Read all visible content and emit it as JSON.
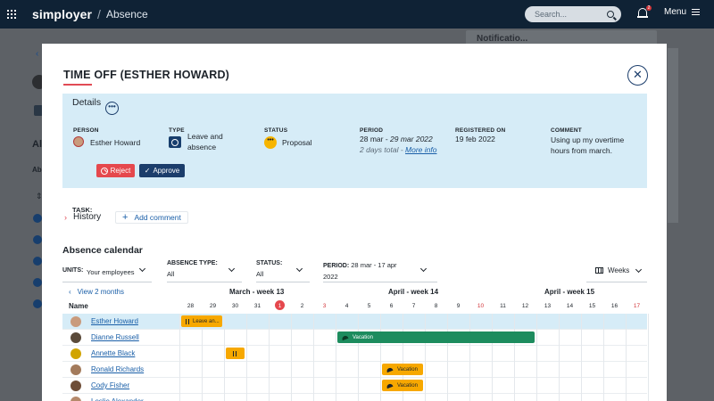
{
  "topbar": {
    "logo": "simployer",
    "separator": "/",
    "breadcrumb": "Absence",
    "search_placeholder": "Search...",
    "notification_count": "2",
    "menu_label": "Menu"
  },
  "background": {
    "notifications_title": "Notificatio..."
  },
  "modal": {
    "title": "TIME OFF (ESTHER HOWARD)",
    "close_label": "✕",
    "details": {
      "title": "Details",
      "more_label": "•••",
      "person_header": "PERSON",
      "person_value": "Esther Howard",
      "type_header": "TYPE",
      "type_value": "Leave and absence",
      "status_header": "STATUS",
      "status_value": "Proposal",
      "status_icon_label": "•••",
      "period_header": "PERIOD",
      "period_start": "28 mar",
      "period_sep": " - ",
      "period_end": "29 mar 2022",
      "period_total": "2 days total",
      "period_total_sep": " - ",
      "more_info": "More info",
      "registered_header": "REGISTERED ON",
      "registered_value": "19 feb 2022",
      "comment_header": "COMMENT",
      "comment_value": "Using up my overtime hours from march.",
      "task_label": "TASK:",
      "reject_label": "Reject",
      "approve_label": "Approve"
    },
    "history_label": "History",
    "add_comment_label": "Add comment",
    "calendar": {
      "title": "Absence calendar",
      "units_label": "UNITS:",
      "units_value": "Your employees",
      "absence_type_label": "ABSENCE TYPE:",
      "absence_type_value": "All",
      "status_label": "STATUS:",
      "status_value": "All",
      "period_label": "PERIOD:",
      "period_value": "28 mar - 17 apr 2022",
      "view_label": "Weeks",
      "view_two_months": "View 2 months",
      "weeks": [
        "March - week 13",
        "April - week 14",
        "April - week 15"
      ],
      "name_header": "Name",
      "days": [
        {
          "d": "28",
          "t": "n"
        },
        {
          "d": "29",
          "t": "n"
        },
        {
          "d": "30",
          "t": "n"
        },
        {
          "d": "31",
          "t": "n"
        },
        {
          "d": "1",
          "t": "today"
        },
        {
          "d": "2",
          "t": "n"
        },
        {
          "d": "3",
          "t": "red"
        },
        {
          "d": "4",
          "t": "n"
        },
        {
          "d": "5",
          "t": "n"
        },
        {
          "d": "6",
          "t": "n"
        },
        {
          "d": "7",
          "t": "n"
        },
        {
          "d": "8",
          "t": "n"
        },
        {
          "d": "9",
          "t": "n"
        },
        {
          "d": "10",
          "t": "red"
        },
        {
          "d": "11",
          "t": "n"
        },
        {
          "d": "12",
          "t": "n"
        },
        {
          "d": "13",
          "t": "n"
        },
        {
          "d": "14",
          "t": "n"
        },
        {
          "d": "15",
          "t": "n"
        },
        {
          "d": "16",
          "t": "n"
        },
        {
          "d": "17",
          "t": "red"
        }
      ],
      "rows": [
        {
          "name": "Esther Howard",
          "avatar_color": "#c99b7d",
          "highlight": true,
          "bars": [
            {
              "start": 0,
              "days": 2,
              "label": "Leave an...",
              "color": "orange",
              "icon": "pause"
            }
          ]
        },
        {
          "name": "Dianne Russell",
          "avatar_color": "#5a4a3a",
          "highlight": false,
          "bars": [
            {
              "start": 7,
              "days": 9,
              "label": "Vacation",
              "color": "green",
              "icon": "umbrella"
            }
          ]
        },
        {
          "name": "Annette Black",
          "avatar_color": "#d1a400",
          "highlight": false,
          "bars": [
            {
              "start": 2,
              "days": 1,
              "label": "",
              "color": "orange",
              "icon": "pause"
            }
          ]
        },
        {
          "name": "Ronald Richards",
          "avatar_color": "#a37b5c",
          "highlight": false,
          "bars": [
            {
              "start": 9,
              "days": 2,
              "label": "Vacation",
              "color": "orange",
              "icon": "umbrella"
            }
          ]
        },
        {
          "name": "Cody Fisher",
          "avatar_color": "#6e4e38",
          "highlight": false,
          "bars": [
            {
              "start": 9,
              "days": 2,
              "label": "Vacation",
              "color": "orange",
              "icon": "umbrella"
            }
          ]
        },
        {
          "name": "Leslie Alexander",
          "avatar_color": "#b5896b",
          "highlight": false,
          "bars": []
        }
      ]
    }
  }
}
